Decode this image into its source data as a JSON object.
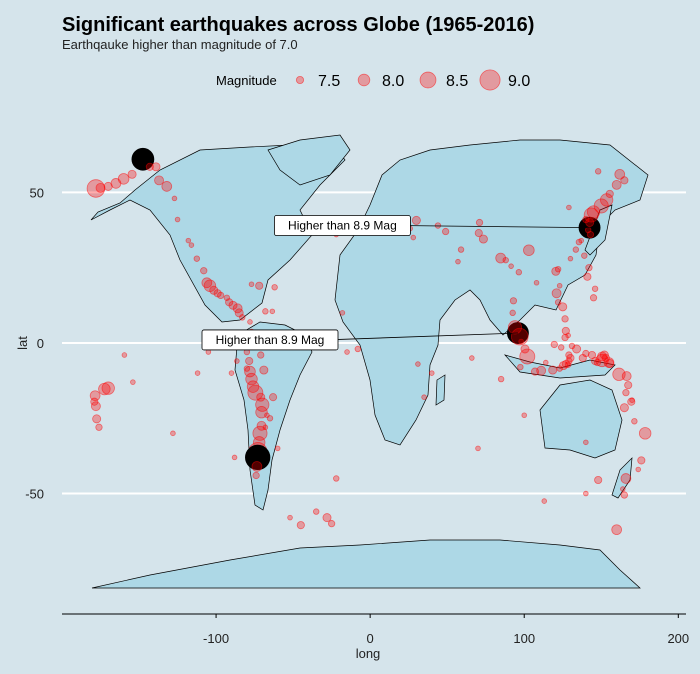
{
  "chart_data": {
    "type": "scatter",
    "title": "Significant earthquakes across Globe (1965-2016)",
    "subtitle": "Earthqauke higher than magnitude of 7.0",
    "xlabel": "long",
    "ylabel": "lat",
    "xlim": [
      -200,
      205
    ],
    "ylim": [
      -90,
      85
    ],
    "x_ticks": [
      -100,
      0,
      100,
      200
    ],
    "y_ticks": [
      50,
      0,
      -50
    ],
    "grid": "horizontal",
    "legend": {
      "title": "Magnitude",
      "position": "top",
      "entries": [
        {
          "label": "7.5",
          "value": 7.5
        },
        {
          "label": "8.0",
          "value": 8.0
        },
        {
          "label": "8.5",
          "value": 8.5
        },
        {
          "label": "9.0",
          "value": 9.0
        }
      ]
    },
    "colors": {
      "background": "#d5e4eb",
      "land": "#add8e6",
      "point": "#ff0000",
      "highlight": "#000000",
      "grid": "#ffffff"
    },
    "annotations": [
      {
        "text": "Higher than 8.9 Mag",
        "lon": 142.4,
        "lat": 38.3
      },
      {
        "text": "Higher than 8.9 Mag",
        "lon": 95.9,
        "lat": 3.3
      }
    ],
    "series": [
      {
        "name": "Earthquakes",
        "points": [
          [
            142.4,
            38.3,
            9.1
          ],
          [
            95.9,
            3.3,
            9.1
          ],
          [
            -72.9,
            -36.1,
            8.8
          ],
          [
            97.1,
            2.1,
            8.6
          ],
          [
            -178,
            51.3,
            8.7
          ],
          [
            161.5,
            -10.4,
            8.1
          ],
          [
            150.5,
            -5.8,
            8.1
          ],
          [
            178.5,
            -30,
            8.0
          ],
          [
            -170,
            -15,
            8.1
          ],
          [
            -172.5,
            -15.3,
            8.0
          ],
          [
            -178.5,
            -17.5,
            7.8
          ],
          [
            -178,
            -21,
            7.7
          ],
          [
            -177.5,
            -25.2,
            7.6
          ],
          [
            -176,
            -28,
            7.4
          ],
          [
            -179,
            -19.5,
            7.5
          ],
          [
            176,
            -39,
            7.5
          ],
          [
            174,
            -42,
            7.2
          ],
          [
            166,
            -45,
            7.8
          ],
          [
            164,
            -48.5,
            7.2
          ],
          [
            165,
            -50.5,
            7.4
          ],
          [
            171.5,
            -26,
            7.3
          ],
          [
            167.5,
            -14,
            7.5
          ],
          [
            166.5,
            -11,
            7.7
          ],
          [
            169.5,
            -19.5,
            7.5
          ],
          [
            166,
            -16.5,
            7.4
          ],
          [
            155,
            -6.5,
            7.8
          ],
          [
            152,
            -4,
            7.6
          ],
          [
            146,
            -6,
            7.5
          ],
          [
            144,
            -4,
            7.5
          ],
          [
            140,
            -3.5,
            7.4
          ],
          [
            138,
            -5,
            7.5
          ],
          [
            134,
            -2,
            7.6
          ],
          [
            129,
            -4,
            7.4
          ],
          [
            127,
            -7,
            7.5
          ],
          [
            123,
            -8.5,
            7.3
          ],
          [
            118.5,
            -9,
            7.6
          ],
          [
            111,
            -9.2,
            7.7
          ],
          [
            107,
            -9.5,
            7.5
          ],
          [
            102,
            -4.5,
            8.4
          ],
          [
            100.5,
            -2,
            7.6
          ],
          [
            98,
            0.5,
            7.2
          ],
          [
            94,
            5.2,
            8.2
          ],
          [
            97.5,
            -8,
            7.3
          ],
          [
            92.5,
            10,
            7.3
          ],
          [
            93,
            14,
            7.4
          ],
          [
            96.5,
            23.5,
            7.3
          ],
          [
            91.5,
            25.5,
            7.2
          ],
          [
            103,
            30.8,
            7.9
          ],
          [
            88,
            27.5,
            7.3
          ],
          [
            84.7,
            28.2,
            7.8
          ],
          [
            73.5,
            34.5,
            7.6
          ],
          [
            70.5,
            36.5,
            7.5
          ],
          [
            71,
            40,
            7.4
          ],
          [
            59,
            31,
            7.3
          ],
          [
            57,
            27,
            7.2
          ],
          [
            49,
            37,
            7.4
          ],
          [
            44,
            39,
            7.3
          ],
          [
            26,
            38,
            7.2
          ],
          [
            30,
            40.7,
            7.6
          ],
          [
            20,
            39,
            7.3
          ],
          [
            22,
            36.5,
            7.2
          ],
          [
            28,
            35,
            7.2
          ],
          [
            15,
            38.3,
            7.2
          ],
          [
            -26,
            38,
            7.4
          ],
          [
            -31,
            37.3,
            7.3
          ],
          [
            -22,
            36,
            7.2
          ],
          [
            120.5,
            23.8,
            7.6
          ],
          [
            122,
            24.5,
            7.3
          ],
          [
            125,
            12,
            7.6
          ],
          [
            126.5,
            8,
            7.4
          ],
          [
            122,
            13.5,
            7.3
          ],
          [
            121,
            16.5,
            7.7
          ],
          [
            123,
            19,
            7.2
          ],
          [
            127,
            4,
            7.5
          ],
          [
            126.5,
            1.8,
            7.4
          ],
          [
            128.5,
            2.5,
            7.2
          ],
          [
            131,
            -1,
            7.3
          ],
          [
            124,
            -1.5,
            7.3
          ],
          [
            119.5,
            -0.5,
            7.4
          ],
          [
            143.5,
            42.5,
            8.3
          ],
          [
            145,
            43.5,
            8.1
          ],
          [
            150,
            45.5,
            8.3
          ],
          [
            153.5,
            47.5,
            8.1
          ],
          [
            155.5,
            49.5,
            7.5
          ],
          [
            160,
            52.5,
            7.7
          ],
          [
            162,
            56,
            7.8
          ],
          [
            165,
            54,
            7.5
          ],
          [
            142.5,
            40,
            7.6
          ],
          [
            143,
            36,
            7.4
          ],
          [
            141.5,
            37.5,
            7.3
          ],
          [
            140,
            41,
            7.4
          ],
          [
            135.5,
            33.5,
            7.3
          ],
          [
            139,
            29,
            7.3
          ],
          [
            142,
            25,
            7.4
          ],
          [
            141,
            22,
            7.5
          ],
          [
            145,
            15,
            7.4
          ],
          [
            146,
            18,
            7.3
          ],
          [
            137,
            34,
            7.2
          ],
          [
            133.5,
            31,
            7.3
          ],
          [
            130,
            28,
            7.2
          ],
          [
            129,
            45,
            7.2
          ],
          [
            148,
            57,
            7.3
          ],
          [
            -175,
            51.5,
            7.7
          ],
          [
            -170,
            52,
            7.6
          ],
          [
            -165,
            53,
            7.8
          ],
          [
            -160,
            54.5,
            7.9
          ],
          [
            -154.5,
            56,
            7.6
          ],
          [
            -147.5,
            61,
            9.2
          ],
          [
            -143,
            58.5,
            7.5
          ],
          [
            -139,
            58.5,
            7.6
          ],
          [
            -137,
            54,
            7.7
          ],
          [
            -132,
            52,
            7.8
          ],
          [
            -127,
            48,
            7.2
          ],
          [
            -125,
            41,
            7.2
          ],
          [
            -118,
            34,
            7.2
          ],
          [
            -116,
            32.5,
            7.2
          ],
          [
            -112.5,
            28,
            7.3
          ],
          [
            -108,
            24,
            7.4
          ],
          [
            -106,
            20,
            7.8
          ],
          [
            -104,
            19,
            8.0
          ],
          [
            -101.5,
            17.5,
            7.6
          ],
          [
            -99,
            16.5,
            7.5
          ],
          [
            -97,
            15.8,
            7.4
          ],
          [
            -93,
            15,
            7.3
          ],
          [
            -91.5,
            13.5,
            7.5
          ],
          [
            -89,
            12.5,
            7.6
          ],
          [
            -86,
            11.5,
            7.7
          ],
          [
            -85,
            10,
            7.6
          ],
          [
            -83,
            8.5,
            7.3
          ],
          [
            -78,
            7,
            7.2
          ],
          [
            -77,
            3.5,
            7.4
          ],
          [
            -79.5,
            1,
            8.8
          ],
          [
            -80,
            -3,
            7.3
          ],
          [
            -78.5,
            -6,
            7.5
          ],
          [
            -78,
            -9.5,
            7.9
          ],
          [
            -77,
            -12,
            8.0
          ],
          [
            -76,
            -14.5,
            8.0
          ],
          [
            -74.5,
            -16.5,
            8.4
          ],
          [
            -71,
            -18,
            7.6
          ],
          [
            -70,
            -20.5,
            8.2
          ],
          [
            -70.5,
            -23,
            8.0
          ],
          [
            -70.5,
            -27.5,
            7.7
          ],
          [
            -71.5,
            -30,
            8.3
          ],
          [
            -72,
            -33,
            8.0
          ],
          [
            -73,
            -38,
            9.5
          ],
          [
            -73.5,
            -41,
            7.8
          ],
          [
            -74,
            -44,
            7.4
          ],
          [
            -67,
            -24,
            7.2
          ],
          [
            -63,
            -18,
            7.5
          ],
          [
            -69,
            -9,
            7.6
          ],
          [
            -71,
            -4,
            7.4
          ],
          [
            -68,
            -28,
            7.2
          ],
          [
            -65,
            -25,
            7.3
          ],
          [
            -60,
            -35,
            7.2
          ],
          [
            -62,
            18.5,
            7.3
          ],
          [
            -72,
            19,
            7.5
          ],
          [
            -77,
            19.5,
            7.2
          ],
          [
            -68,
            10.5,
            7.3
          ],
          [
            -63.5,
            10.5,
            7.2
          ],
          [
            -45,
            -60.5,
            7.5
          ],
          [
            -35,
            -56,
            7.3
          ],
          [
            -28,
            -58,
            7.6
          ],
          [
            -25,
            -60,
            7.4
          ],
          [
            -52,
            -58,
            7.2
          ],
          [
            -105,
            -3,
            7.2
          ],
          [
            -112,
            -10,
            7.2
          ],
          [
            -128,
            -30,
            7.2
          ],
          [
            -88,
            -38,
            7.2
          ],
          [
            113,
            -52.5,
            7.2
          ],
          [
            140,
            -50,
            7.2
          ],
          [
            148,
            -45.5,
            7.5
          ],
          [
            160,
            -62,
            7.8
          ],
          [
            140,
            -33,
            7.2
          ],
          [
            100,
            -24,
            7.2
          ],
          [
            85,
            -12,
            7.3
          ],
          [
            66,
            -5,
            7.2
          ],
          [
            40,
            -10,
            7.2
          ],
          [
            35,
            -18,
            7.2
          ],
          [
            31,
            -7,
            7.2
          ],
          [
            70,
            -35,
            7.2
          ],
          [
            -15,
            -3,
            7.2
          ],
          [
            -18,
            10,
            7.2
          ],
          [
            -22,
            -45,
            7.3
          ],
          [
            -8,
            -2,
            7.3
          ],
          [
            170,
            -19,
            7.2
          ],
          [
            165,
            -21.5,
            7.6
          ],
          [
            155.5,
            -6.8,
            7.6
          ],
          [
            147.5,
            -6.5,
            7.4
          ],
          [
            150.5,
            -4.5,
            7.7
          ],
          [
            153,
            -5,
            7.5
          ],
          [
            108,
            20,
            7.2
          ],
          [
            114,
            -6.5,
            7.2
          ],
          [
            125.5,
            -7.5,
            7.6
          ],
          [
            128.5,
            -7.2,
            7.3
          ],
          [
            129,
            -6,
            7.4
          ],
          [
            130,
            -5,
            7.5
          ],
          [
            -86.5,
            -6,
            7.2
          ],
          [
            -90,
            -10,
            7.2
          ],
          [
            -80,
            -8.5,
            7.3
          ],
          [
            -159.5,
            -4,
            7.2
          ],
          [
            -154,
            -13,
            7.2
          ]
        ]
      }
    ]
  }
}
